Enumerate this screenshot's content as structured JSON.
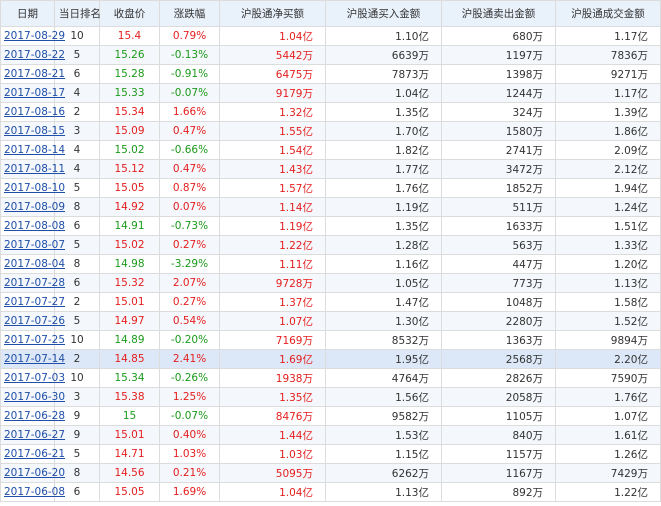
{
  "table": {
    "headers": [
      "日期",
      "当日排名",
      "收盘价",
      "涨跌幅",
      "沪股通净买额",
      "沪股通买入金额",
      "沪股通卖出金额",
      "沪股通成交金额"
    ],
    "rows": [
      {
        "date": "2017-08-29",
        "rank": "10",
        "close": "15.4",
        "pct": "0.79%",
        "net": "1.04亿",
        "buy": "1.10亿",
        "sell": "680万",
        "turn": "1.17亿",
        "dir": "up"
      },
      {
        "date": "2017-08-22",
        "rank": "5",
        "close": "15.26",
        "pct": "-0.13%",
        "net": "5442万",
        "buy": "6639万",
        "sell": "1197万",
        "turn": "7836万",
        "dir": "down"
      },
      {
        "date": "2017-08-21",
        "rank": "6",
        "close": "15.28",
        "pct": "-0.91%",
        "net": "6475万",
        "buy": "7873万",
        "sell": "1398万",
        "turn": "9271万",
        "dir": "down"
      },
      {
        "date": "2017-08-17",
        "rank": "4",
        "close": "15.33",
        "pct": "-0.07%",
        "net": "9179万",
        "buy": "1.04亿",
        "sell": "1244万",
        "turn": "1.17亿",
        "dir": "down"
      },
      {
        "date": "2017-08-16",
        "rank": "2",
        "close": "15.34",
        "pct": "1.66%",
        "net": "1.32亿",
        "buy": "1.35亿",
        "sell": "324万",
        "turn": "1.39亿",
        "dir": "up"
      },
      {
        "date": "2017-08-15",
        "rank": "3",
        "close": "15.09",
        "pct": "0.47%",
        "net": "1.55亿",
        "buy": "1.70亿",
        "sell": "1580万",
        "turn": "1.86亿",
        "dir": "up"
      },
      {
        "date": "2017-08-14",
        "rank": "4",
        "close": "15.02",
        "pct": "-0.66%",
        "net": "1.54亿",
        "buy": "1.82亿",
        "sell": "2741万",
        "turn": "2.09亿",
        "dir": "down"
      },
      {
        "date": "2017-08-11",
        "rank": "4",
        "close": "15.12",
        "pct": "0.47%",
        "net": "1.43亿",
        "buy": "1.77亿",
        "sell": "3472万",
        "turn": "2.12亿",
        "dir": "up"
      },
      {
        "date": "2017-08-10",
        "rank": "5",
        "close": "15.05",
        "pct": "0.87%",
        "net": "1.57亿",
        "buy": "1.76亿",
        "sell": "1852万",
        "turn": "1.94亿",
        "dir": "up"
      },
      {
        "date": "2017-08-09",
        "rank": "8",
        "close": "14.92",
        "pct": "0.07%",
        "net": "1.14亿",
        "buy": "1.19亿",
        "sell": "511万",
        "turn": "1.24亿",
        "dir": "up"
      },
      {
        "date": "2017-08-08",
        "rank": "6",
        "close": "14.91",
        "pct": "-0.73%",
        "net": "1.19亿",
        "buy": "1.35亿",
        "sell": "1633万",
        "turn": "1.51亿",
        "dir": "down"
      },
      {
        "date": "2017-08-07",
        "rank": "5",
        "close": "15.02",
        "pct": "0.27%",
        "net": "1.22亿",
        "buy": "1.28亿",
        "sell": "563万",
        "turn": "1.33亿",
        "dir": "up"
      },
      {
        "date": "2017-08-04",
        "rank": "8",
        "close": "14.98",
        "pct": "-3.29%",
        "net": "1.11亿",
        "buy": "1.16亿",
        "sell": "447万",
        "turn": "1.20亿",
        "dir": "down"
      },
      {
        "date": "2017-07-28",
        "rank": "6",
        "close": "15.32",
        "pct": "2.07%",
        "net": "9728万",
        "buy": "1.05亿",
        "sell": "773万",
        "turn": "1.13亿",
        "dir": "up"
      },
      {
        "date": "2017-07-27",
        "rank": "2",
        "close": "15.01",
        "pct": "0.27%",
        "net": "1.37亿",
        "buy": "1.47亿",
        "sell": "1048万",
        "turn": "1.58亿",
        "dir": "up"
      },
      {
        "date": "2017-07-26",
        "rank": "5",
        "close": "14.97",
        "pct": "0.54%",
        "net": "1.07亿",
        "buy": "1.30亿",
        "sell": "2280万",
        "turn": "1.52亿",
        "dir": "up"
      },
      {
        "date": "2017-07-25",
        "rank": "10",
        "close": "14.89",
        "pct": "-0.20%",
        "net": "7169万",
        "buy": "8532万",
        "sell": "1363万",
        "turn": "9894万",
        "dir": "down"
      },
      {
        "date": "2017-07-14",
        "rank": "2",
        "close": "14.85",
        "pct": "2.41%",
        "net": "1.69亿",
        "buy": "1.95亿",
        "sell": "2568万",
        "turn": "2.20亿",
        "dir": "up"
      },
      {
        "date": "2017-07-03",
        "rank": "10",
        "close": "15.34",
        "pct": "-0.26%",
        "net": "1938万",
        "buy": "4764万",
        "sell": "2826万",
        "turn": "7590万",
        "dir": "down"
      },
      {
        "date": "2017-06-30",
        "rank": "3",
        "close": "15.38",
        "pct": "1.25%",
        "net": "1.35亿",
        "buy": "1.56亿",
        "sell": "2058万",
        "turn": "1.76亿",
        "dir": "up"
      },
      {
        "date": "2017-06-28",
        "rank": "9",
        "close": "15",
        "pct": "-0.07%",
        "net": "8476万",
        "buy": "9582万",
        "sell": "1105万",
        "turn": "1.07亿",
        "dir": "down"
      },
      {
        "date": "2017-06-27",
        "rank": "9",
        "close": "15.01",
        "pct": "0.40%",
        "net": "1.44亿",
        "buy": "1.53亿",
        "sell": "840万",
        "turn": "1.61亿",
        "dir": "up"
      },
      {
        "date": "2017-06-21",
        "rank": "5",
        "close": "14.71",
        "pct": "1.03%",
        "net": "1.03亿",
        "buy": "1.15亿",
        "sell": "1157万",
        "turn": "1.26亿",
        "dir": "up"
      },
      {
        "date": "2017-06-20",
        "rank": "8",
        "close": "14.56",
        "pct": "0.21%",
        "net": "5095万",
        "buy": "6262万",
        "sell": "1167万",
        "turn": "7429万",
        "dir": "up"
      },
      {
        "date": "2017-06-08",
        "rank": "6",
        "close": "15.05",
        "pct": "1.69%",
        "net": "1.04亿",
        "buy": "1.13亿",
        "sell": "892万",
        "turn": "1.22亿",
        "dir": "up"
      }
    ]
  },
  "colors": {
    "up": "#e41e1e",
    "down": "#1a9a1a",
    "header_bg": "#e9f1fb",
    "link": "#1f4fa8"
  }
}
